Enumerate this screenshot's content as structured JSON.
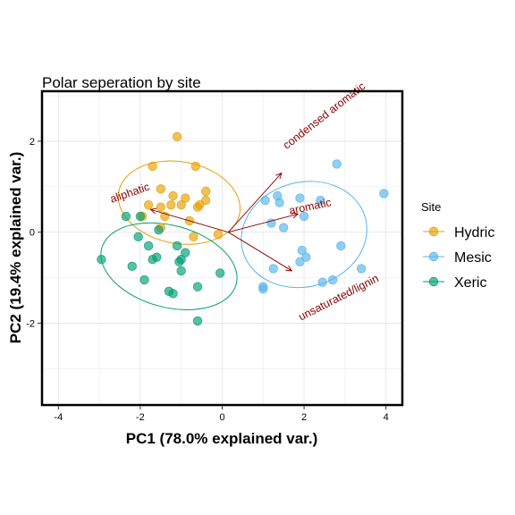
{
  "chart_data": {
    "type": "scatter",
    "title": "Polar seperation by site",
    "xlabel": "PC1 (78.0% explained var.)",
    "ylabel": "PC2 (19.4% explained var.)",
    "xlim": [
      -4.4,
      4.4
    ],
    "ylim": [
      -3.8,
      3.1
    ],
    "xticks": [
      -4,
      -2,
      0,
      2,
      4
    ],
    "yticks": [
      -2,
      0,
      2
    ],
    "grid": true,
    "legend": {
      "title": "Site",
      "position": "right"
    },
    "series": [
      {
        "name": "Hydric",
        "color": "#E69F00",
        "points": [
          [
            -1.7,
            1.45
          ],
          [
            -1.1,
            2.1
          ],
          [
            -0.65,
            1.45
          ],
          [
            -1.5,
            0.95
          ],
          [
            -0.4,
            0.9
          ],
          [
            -0.4,
            0.7
          ],
          [
            -0.55,
            0.6
          ],
          [
            -1.2,
            0.8
          ],
          [
            -0.9,
            0.75
          ],
          [
            -1.8,
            0.6
          ],
          [
            -1.5,
            0.55
          ],
          [
            -1.0,
            0.6
          ],
          [
            -1.25,
            0.6
          ],
          [
            -0.6,
            0.55
          ],
          [
            -1.95,
            0.35
          ],
          [
            -1.4,
            0.35
          ],
          [
            -0.8,
            0.25
          ],
          [
            -1.5,
            0.1
          ],
          [
            -0.7,
            -0.1
          ],
          [
            -0.1,
            -0.05
          ]
        ]
      },
      {
        "name": "Mesic",
        "color": "#56B4E9",
        "points": [
          [
            2.8,
            1.5
          ],
          [
            3.95,
            0.85
          ],
          [
            1.35,
            0.8
          ],
          [
            1.9,
            0.75
          ],
          [
            1.05,
            0.7
          ],
          [
            2.4,
            0.7
          ],
          [
            1.4,
            0.65
          ],
          [
            2.0,
            0.35
          ],
          [
            1.2,
            0.2
          ],
          [
            1.5,
            0.1
          ],
          [
            2.9,
            -0.3
          ],
          [
            1.95,
            -0.4
          ],
          [
            2.05,
            -0.55
          ],
          [
            1.9,
            -0.65
          ],
          [
            3.4,
            -0.8
          ],
          [
            1.25,
            -0.8
          ],
          [
            2.7,
            -1.05
          ],
          [
            2.45,
            -1.1
          ],
          [
            1.0,
            -1.2
          ],
          [
            1.0,
            -1.25
          ]
        ]
      },
      {
        "name": "Xeric",
        "color": "#009E73",
        "points": [
          [
            -2.35,
            0.35
          ],
          [
            -2.0,
            0.35
          ],
          [
            -1.55,
            0.05
          ],
          [
            -2.05,
            -0.1
          ],
          [
            -1.8,
            -0.3
          ],
          [
            -1.1,
            -0.3
          ],
          [
            -0.9,
            -0.45
          ],
          [
            -1.6,
            -0.55
          ],
          [
            -1.7,
            -0.6
          ],
          [
            -2.95,
            -0.6
          ],
          [
            -1.0,
            -0.6
          ],
          [
            -1.05,
            -0.65
          ],
          [
            -2.2,
            -0.75
          ],
          [
            -1.0,
            -0.85
          ],
          [
            -0.05,
            -0.9
          ],
          [
            -1.9,
            -1.05
          ],
          [
            -1.3,
            -1.3
          ],
          [
            -0.6,
            -1.2
          ],
          [
            -1.2,
            -1.35
          ],
          [
            -0.6,
            -1.95
          ]
        ]
      }
    ],
    "ellipses": [
      {
        "series": "Hydric",
        "cx": -1.05,
        "cy": 0.65,
        "rx": 1.5,
        "ry": 0.9,
        "angle": -10
      },
      {
        "series": "Mesic",
        "cx": 2.0,
        "cy": -0.05,
        "rx": 1.55,
        "ry": 1.15,
        "angle": 15
      },
      {
        "series": "Xeric",
        "cx": -1.3,
        "cy": -0.75,
        "rx": 1.7,
        "ry": 0.9,
        "angle": -15
      }
    ],
    "loadings": {
      "color": "#8B0000",
      "origin": [
        0.15,
        0.0
      ],
      "vectors": [
        {
          "label": "condensed aromatic",
          "x": 1.45,
          "y": 1.3,
          "label_x": 2.5,
          "label_y": 2.55,
          "label_angle": 38
        },
        {
          "label": "aromatic",
          "x": 1.85,
          "y": 0.4,
          "label_x": 2.15,
          "label_y": 0.55,
          "label_angle": 12
        },
        {
          "label": "unsaturated/lignin",
          "x": 1.7,
          "y": -0.85,
          "label_x": 2.85,
          "label_y": -1.45,
          "label_angle": 27
        },
        {
          "label": "aliphatic",
          "x": -1.75,
          "y": 0.5,
          "label_x": -2.25,
          "label_y": 0.85,
          "label_angle": 19
        }
      ]
    }
  }
}
